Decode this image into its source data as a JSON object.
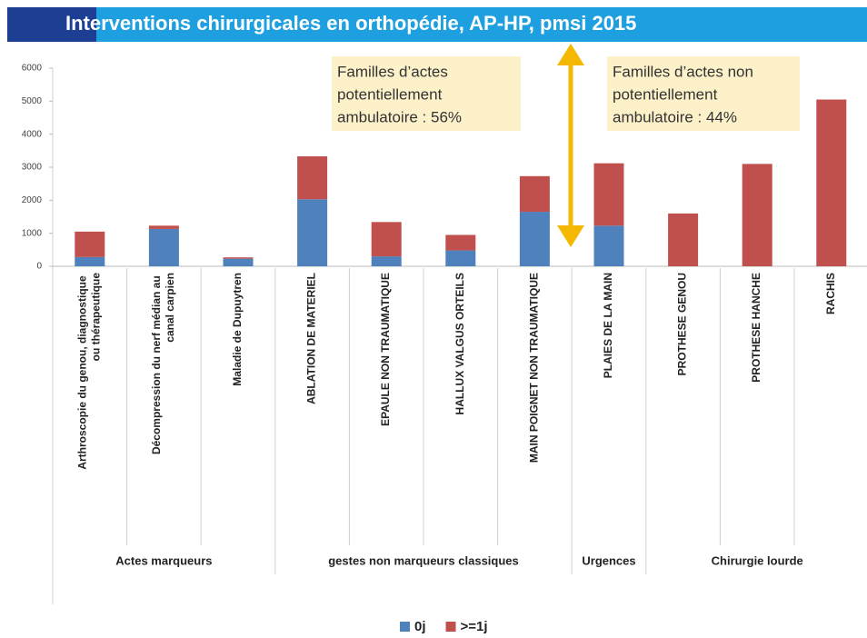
{
  "chart_data": {
    "type": "stacked-bar",
    "title": "Interventions  chirurgicales en orthopédie, AP-HP, pmsi 2015",
    "groups": [
      {
        "label": "Actes marqueurs",
        "categories": [
          "Arthroscopie du genou, diagnostique ou thérapeutique",
          "Décompression du nerf médian au canal carpien",
          "Maladie de Dupuytren"
        ]
      },
      {
        "label": "gestes non marqueurs classiques",
        "categories": [
          "ABLATION DE MATERIEL",
          "EPAULE NON TRAUMATIQUE",
          "HALLUX VALGUS ORTEILS",
          "MAIN POIGNET NON TRAUMATIQUE"
        ]
      },
      {
        "label": "Urgences",
        "categories": [
          "PLAIES DE LA MAIN"
        ]
      },
      {
        "label": "Chirurgie lourde",
        "categories": [
          "PROTHESE GENOU",
          "PROTHESE HANCHE",
          "RACHIS"
        ]
      }
    ],
    "series": [
      {
        "name": "0j",
        "color": "#4f81bd",
        "values": [
          280,
          1130,
          230,
          2030,
          300,
          480,
          1650,
          1230,
          0,
          0,
          0
        ]
      },
      {
        "name": ">=1j",
        "color": "#c0504d",
        "values": [
          770,
          100,
          40,
          1300,
          1040,
          470,
          1080,
          1890,
          1600,
          3100,
          5050
        ]
      }
    ],
    "ylim": [
      0,
      6000
    ],
    "yticks": [
      0,
      1000,
      2000,
      3000,
      4000,
      5000,
      6000
    ],
    "annotations": [
      {
        "lines": [
          "Familles d’actes",
          "potentiellement",
          "ambulatoire : 56%"
        ]
      },
      {
        "lines": [
          "Familles d’actes non",
          "potentiellement",
          " ambulatoire : 44%"
        ]
      }
    ],
    "legend": "bottom"
  }
}
